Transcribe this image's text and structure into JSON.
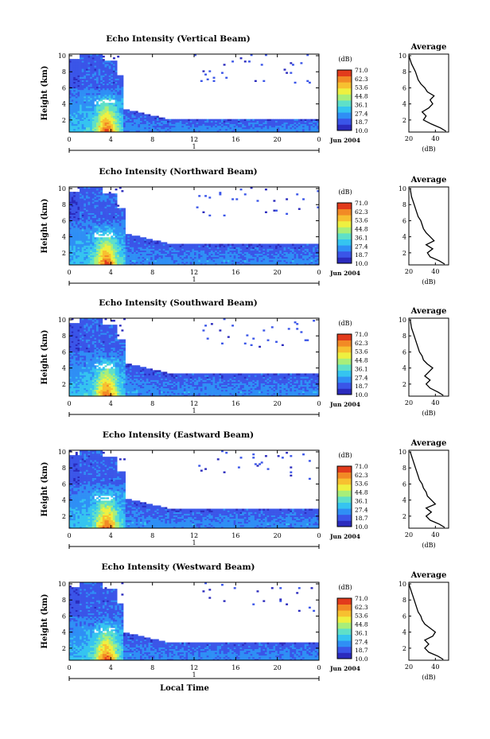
{
  "colors": {
    "scale": [
      "#2b2bbd",
      "#3a55e8",
      "#2f8ff5",
      "#35c4f0",
      "#5fe0c8",
      "#a8ee7a",
      "#eef040",
      "#f7c030",
      "#f28a25",
      "#e23b1c"
    ],
    "line": "#000000"
  },
  "figure": {
    "colorbar_unit": "(dB)",
    "colorbar_ticks": [
      "71.0",
      "62.3",
      "53.6",
      "44.8",
      "36.1",
      "27.4",
      "18.7",
      "10.0"
    ],
    "average_title": "Average",
    "average_xlabel": "(dB)",
    "height_label": "Height (km)",
    "date_label": "Jun 2004",
    "day_marker": "1",
    "xlabel": "Local Time",
    "time_ticks": [
      "0",
      "4",
      "8",
      "12",
      "16",
      "20",
      "0"
    ],
    "height_ticks": [
      "2",
      "4",
      "6",
      "8",
      "10"
    ],
    "avg_ticks": [
      "20",
      "40"
    ]
  },
  "chart_data": [
    {
      "type": "heatmap",
      "title": "Echo Intensity (Vertical Beam)",
      "xlabel": "",
      "ylabel": "Height (km)",
      "xlim": [
        0,
        24
      ],
      "ylim": [
        0.5,
        10.2
      ],
      "clim": [
        10.0,
        71.0
      ],
      "x_ticks": [
        "0",
        "4",
        "8",
        "12",
        "16",
        "20",
        "0"
      ],
      "y_ticks": [
        2,
        4,
        6,
        8,
        10
      ],
      "colorbar_label": "(dB)",
      "convective_period_h": [
        0,
        5.3
      ],
      "stratiform_top_km": 2.2,
      "average_profile": {
        "title": "Average",
        "xlabel": "(dB)",
        "xlim": [
          20,
          50
        ],
        "height_km": [
          0.6,
          1.0,
          1.5,
          2.0,
          2.5,
          3.0,
          3.5,
          4.0,
          4.5,
          5.0,
          5.5,
          6.0,
          6.5,
          7.0,
          8.0,
          9.0,
          10.0
        ],
        "intensity_db": [
          48,
          44,
          37,
          31,
          33,
          30,
          35,
          38,
          36,
          39,
          34,
          32,
          29,
          27,
          25,
          22,
          20
        ]
      }
    },
    {
      "type": "heatmap",
      "title": "Echo Intensity (Northward Beam)",
      "xlabel": "",
      "ylabel": "Height (km)",
      "xlim": [
        0,
        24
      ],
      "ylim": [
        0.5,
        10.2
      ],
      "clim": [
        10.0,
        71.0
      ],
      "x_ticks": [
        "0",
        "4",
        "8",
        "12",
        "16",
        "20",
        "0"
      ],
      "y_ticks": [
        2,
        4,
        6,
        8,
        10
      ],
      "colorbar_label": "(dB)",
      "convective_period_h": [
        0,
        5.5
      ],
      "stratiform_top_km": 3.2,
      "average_profile": {
        "title": "Average",
        "xlabel": "(dB)",
        "xlim": [
          20,
          50
        ],
        "height_km": [
          0.6,
          1.0,
          1.5,
          2.0,
          2.5,
          3.0,
          3.5,
          4.0,
          4.5,
          5.0,
          5.5,
          6.0,
          6.5,
          7.0,
          8.0,
          9.0,
          10.0
        ],
        "intensity_db": [
          47,
          43,
          36,
          34,
          38,
          33,
          39,
          36,
          33,
          31,
          30,
          29,
          27,
          26,
          24,
          22,
          21
        ]
      }
    },
    {
      "type": "heatmap",
      "title": "Echo Intensity (Southward Beam)",
      "xlabel": "",
      "ylabel": "Height (km)",
      "xlim": [
        0,
        24
      ],
      "ylim": [
        0.5,
        10.2
      ],
      "clim": [
        10.0,
        71.0
      ],
      "x_ticks": [
        "0",
        "4",
        "8",
        "12",
        "16",
        "20",
        "0"
      ],
      "y_ticks": [
        2,
        4,
        6,
        8,
        10
      ],
      "colorbar_label": "(dB)",
      "convective_period_h": [
        0,
        5.5
      ],
      "stratiform_top_km": 3.4,
      "average_profile": {
        "title": "Average",
        "xlabel": "(dB)",
        "xlim": [
          20,
          50
        ],
        "height_km": [
          0.6,
          1.0,
          1.5,
          2.0,
          2.5,
          3.0,
          3.5,
          4.0,
          4.5,
          5.0,
          5.5,
          6.0,
          6.5,
          7.0,
          8.0,
          9.0,
          10.0
        ],
        "intensity_db": [
          46,
          42,
          36,
          33,
          36,
          32,
          35,
          38,
          34,
          31,
          30,
          28,
          27,
          26,
          24,
          22,
          21
        ]
      }
    },
    {
      "type": "heatmap",
      "title": "Echo Intensity (Eastward Beam)",
      "xlabel": "",
      "ylabel": "Height (km)",
      "xlim": [
        0,
        24
      ],
      "ylim": [
        0.5,
        10.2
      ],
      "clim": [
        10.0,
        71.0
      ],
      "x_ticks": [
        "0",
        "4",
        "8",
        "12",
        "16",
        "20",
        "0"
      ],
      "y_ticks": [
        2,
        4,
        6,
        8,
        10
      ],
      "colorbar_label": "(dB)",
      "convective_period_h": [
        0,
        5.5
      ],
      "stratiform_top_km": 3.0,
      "average_profile": {
        "title": "Average",
        "xlabel": "(dB)",
        "xlim": [
          20,
          50
        ],
        "height_km": [
          0.6,
          1.0,
          1.5,
          2.0,
          2.5,
          3.0,
          3.5,
          4.0,
          4.5,
          5.0,
          5.5,
          6.0,
          6.5,
          7.0,
          8.0,
          9.0,
          10.0
        ],
        "intensity_db": [
          47,
          43,
          36,
          33,
          37,
          33,
          40,
          37,
          34,
          33,
          31,
          30,
          28,
          27,
          25,
          23,
          21
        ]
      }
    },
    {
      "type": "heatmap",
      "title": "Echo Intensity (Westward Beam)",
      "xlabel": "Local Time",
      "ylabel": "Height (km)",
      "xlim": [
        0,
        24
      ],
      "ylim": [
        0.5,
        10.2
      ],
      "clim": [
        10.0,
        71.0
      ],
      "x_ticks": [
        "0",
        "4",
        "8",
        "12",
        "16",
        "20",
        "0"
      ],
      "y_ticks": [
        2,
        4,
        6,
        8,
        10
      ],
      "colorbar_label": "(dB)",
      "convective_period_h": [
        0,
        5.3
      ],
      "stratiform_top_km": 2.8,
      "average_profile": {
        "title": "Average",
        "xlabel": "(dB)",
        "xlim": [
          20,
          50
        ],
        "height_km": [
          0.6,
          1.0,
          1.5,
          2.0,
          2.5,
          3.0,
          3.5,
          4.0,
          4.5,
          5.0,
          5.5,
          6.0,
          6.5,
          7.0,
          8.0,
          9.0,
          10.0
        ],
        "intensity_db": [
          46,
          42,
          35,
          32,
          35,
          32,
          38,
          40,
          36,
          32,
          30,
          29,
          27,
          26,
          24,
          22,
          20
        ]
      }
    }
  ]
}
